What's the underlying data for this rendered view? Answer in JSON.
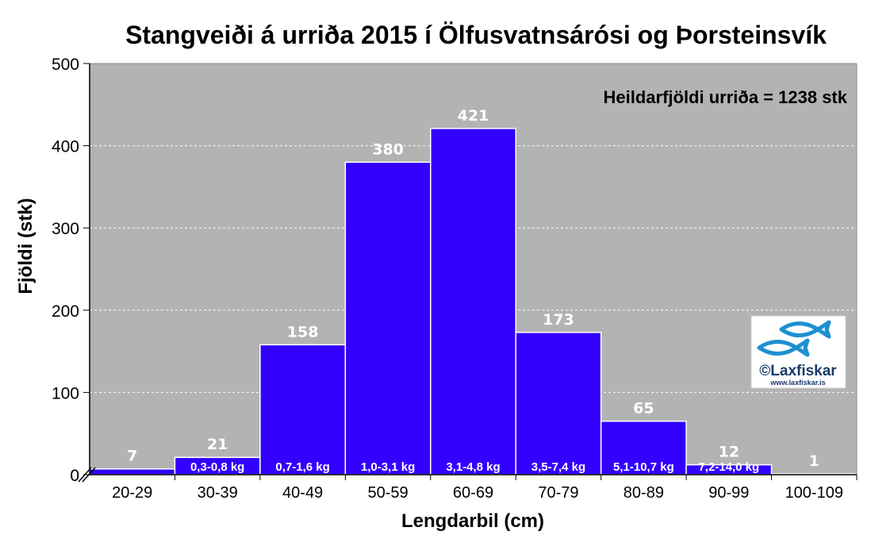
{
  "chart_data": {
    "type": "bar",
    "title": "Stangveiði á urriða 2015 í Ölfusvatnsárósi og Þorsteinsvík",
    "xlabel": "Lengdarbil (cm)",
    "ylabel": "Fjöldi (stk)",
    "ylim": [
      0,
      500
    ],
    "yticks": [
      0,
      100,
      200,
      300,
      400,
      500
    ],
    "grid": true,
    "categories": [
      "20-29",
      "30-39",
      "40-49",
      "50-59",
      "60-69",
      "70-79",
      "80-89",
      "90-99",
      "100-109"
    ],
    "values": [
      7,
      21,
      158,
      380,
      421,
      173,
      65,
      12,
      1
    ],
    "weight_labels": [
      "",
      "0,3-0,8 kg",
      "0,7-1,6 kg",
      "1,0-3,1 kg",
      "3,1-4,8 kg",
      "3,5-7,4 kg",
      "5,1-10,7 kg",
      "7,2-14,0 kg",
      ""
    ],
    "annotation": "Heildarfjöldi urriða = 1238 stk",
    "colors": {
      "bar": "#3300ff",
      "plot_background": "#b3b3b3",
      "gridline": "#ffffff",
      "logo_fish": "#1e90d0"
    }
  },
  "logo": {
    "text": "©Laxfiskar",
    "url": "www.laxfiskar.is"
  }
}
